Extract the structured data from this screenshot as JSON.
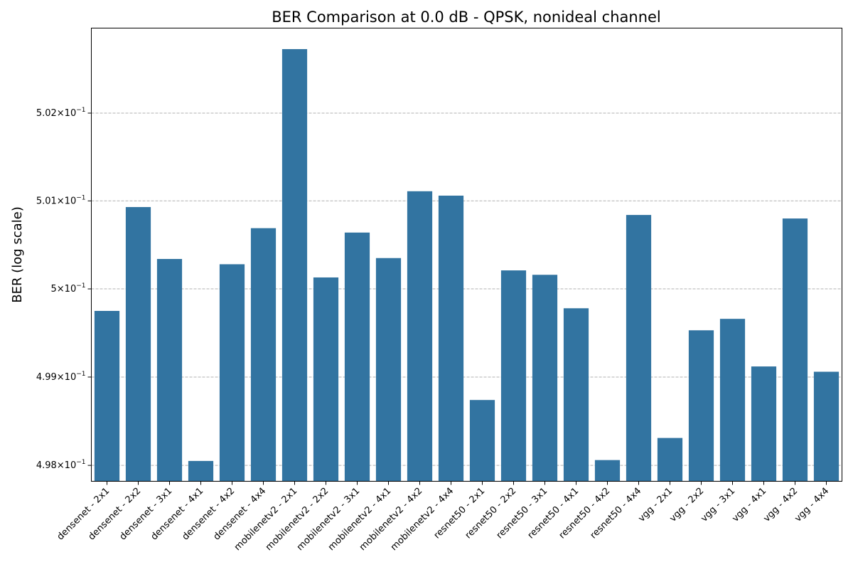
{
  "chart_data": {
    "type": "bar",
    "title": "BER Comparison at 0.0 dB - QPSK, nonideal channel",
    "xlabel": "",
    "ylabel": "BER (log scale)",
    "y_scale": "log",
    "ylim": [
      0.49782,
      0.50297
    ],
    "grid": "y-major-dashed",
    "bar_color": "#3274a1",
    "grid_color": "#b0b0b0",
    "y_ticks": [
      {
        "value": 0.498,
        "mantissa": "4.98",
        "power": "−1"
      },
      {
        "value": 0.499,
        "mantissa": "4.99",
        "power": "−1"
      },
      {
        "value": 0.5,
        "mantissa": "5",
        "power": "−1"
      },
      {
        "value": 0.501,
        "mantissa": "5.01",
        "power": "−1"
      },
      {
        "value": 0.502,
        "mantissa": "5.02",
        "power": "−1"
      }
    ],
    "y_tick_base": "10",
    "y_tick_times": "×",
    "categories": [
      "densenet - 2x1",
      "densenet - 2x2",
      "densenet - 3x1",
      "densenet - 4x1",
      "densenet - 4x2",
      "densenet - 4x4",
      "mobilenetv2 - 2x1",
      "mobilenetv2 - 2x2",
      "mobilenetv2 - 3x1",
      "mobilenetv2 - 4x1",
      "mobilenetv2 - 4x2",
      "mobilenetv2 - 4x4",
      "resnet50 - 2x1",
      "resnet50 - 2x2",
      "resnet50 - 3x1",
      "resnet50 - 4x1",
      "resnet50 - 4x2",
      "resnet50 - 4x4",
      "vgg - 2x1",
      "vgg - 2x2",
      "vgg - 3x1",
      "vgg - 4x1",
      "vgg - 4x2",
      "vgg - 4x4"
    ],
    "values": [
      0.49975,
      0.50093,
      0.50034,
      0.49805,
      0.50028,
      0.50069,
      0.50273,
      0.50013,
      0.50064,
      0.50035,
      0.50111,
      0.50106,
      0.49874,
      0.50021,
      0.50016,
      0.49978,
      0.49806,
      0.50084,
      0.49831,
      0.49953,
      0.49966,
      0.49912,
      0.5008,
      0.49906
    ]
  }
}
